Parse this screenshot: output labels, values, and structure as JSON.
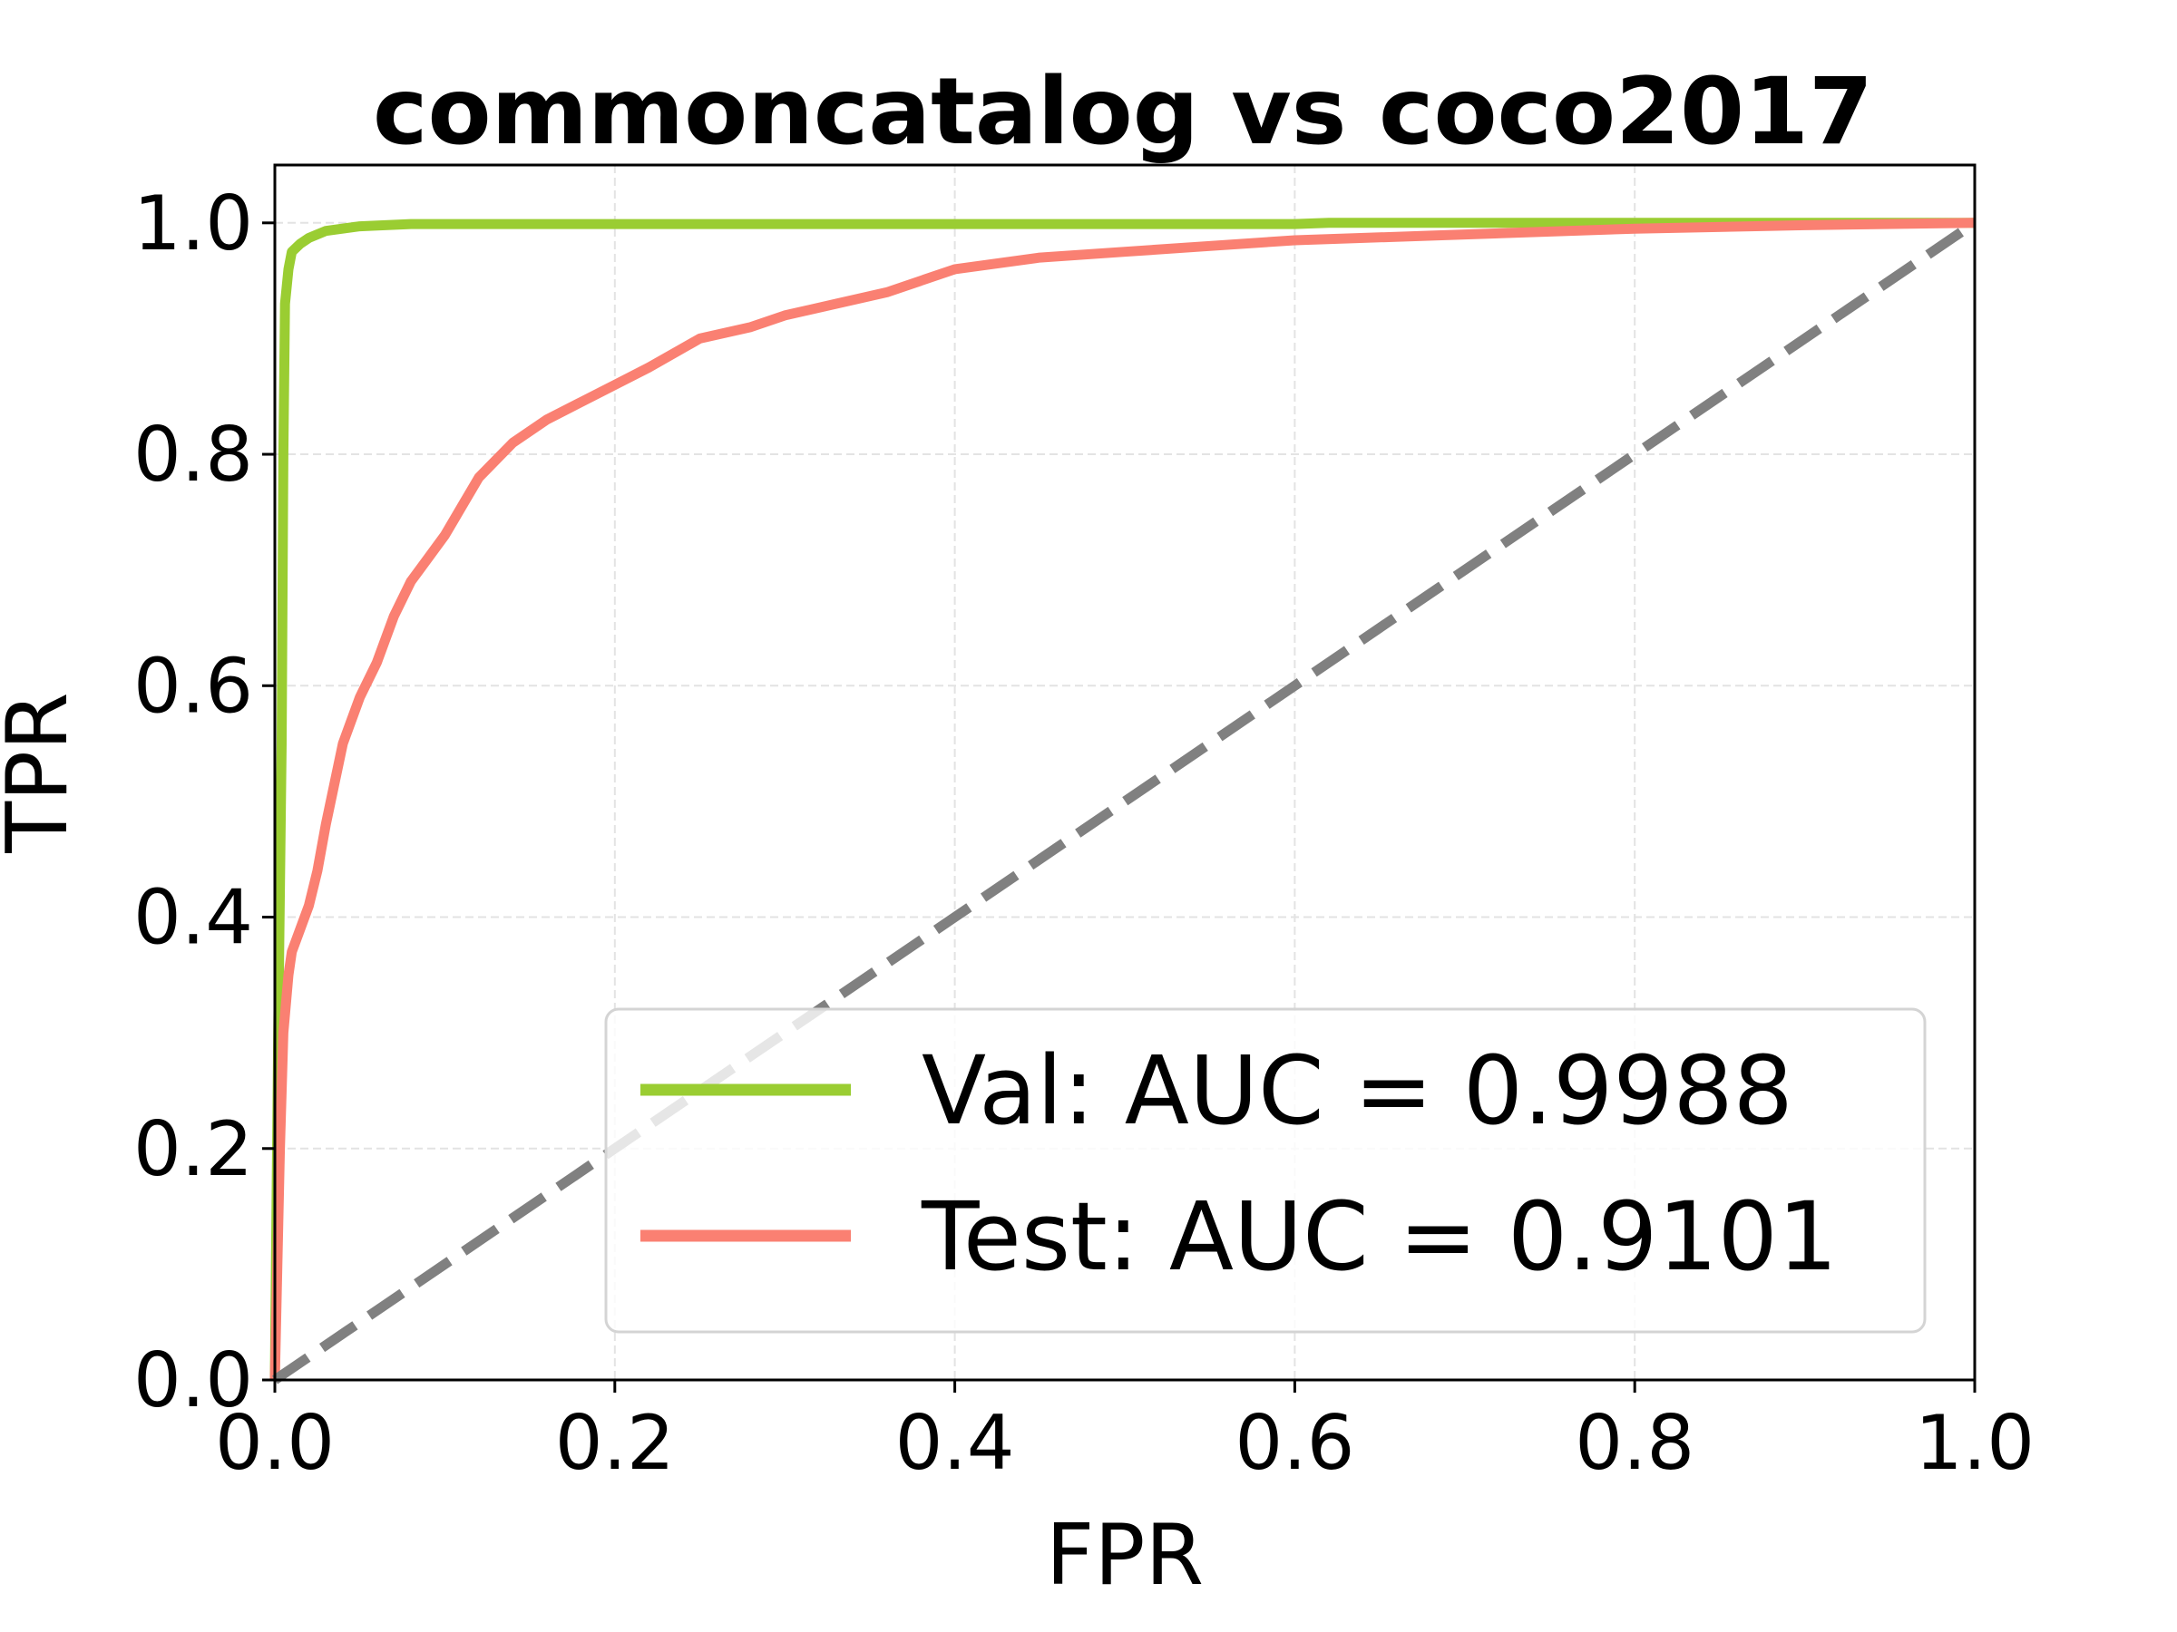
{
  "chart_data": {
    "type": "line",
    "title": "commoncatalog vs coco2017",
    "xlabel": "FPR",
    "ylabel": "TPR",
    "xlim": [
      0,
      1
    ],
    "ylim": [
      0,
      1.05
    ],
    "xticks": [
      "0.0",
      "0.2",
      "0.4",
      "0.6",
      "0.8",
      "1.0"
    ],
    "yticks": [
      "0.0",
      "0.2",
      "0.4",
      "0.6",
      "0.8",
      "1.0"
    ],
    "grid": true,
    "legend_position": "lower-right",
    "series": [
      {
        "name": "Val: AUC = 0.9988",
        "color": "#9acd32",
        "x": [
          0.0,
          0.002,
          0.004,
          0.005,
          0.006,
          0.008,
          0.01,
          0.015,
          0.02,
          0.03,
          0.05,
          0.08,
          0.15,
          0.3,
          0.5,
          0.6,
          0.62,
          0.8,
          1.0
        ],
        "y": [
          0.0,
          0.3,
          0.55,
          0.8,
          0.93,
          0.96,
          0.975,
          0.982,
          0.987,
          0.993,
          0.997,
          0.999,
          0.999,
          0.999,
          0.999,
          0.999,
          1.0,
          1.0,
          1.0
        ]
      },
      {
        "name": "Test: AUC = 0.9101",
        "color": "#fa8072",
        "x": [
          0.0,
          0.003,
          0.005,
          0.008,
          0.01,
          0.015,
          0.02,
          0.025,
          0.03,
          0.04,
          0.05,
          0.06,
          0.07,
          0.08,
          0.09,
          0.1,
          0.12,
          0.14,
          0.16,
          0.18,
          0.2,
          0.22,
          0.25,
          0.28,
          0.3,
          0.33,
          0.36,
          0.4,
          0.45,
          0.5,
          0.55,
          0.6,
          0.7,
          0.8,
          0.9,
          1.0
        ],
        "y": [
          0.0,
          0.2,
          0.3,
          0.35,
          0.37,
          0.39,
          0.41,
          0.44,
          0.48,
          0.55,
          0.59,
          0.62,
          0.66,
          0.69,
          0.71,
          0.73,
          0.78,
          0.81,
          0.83,
          0.845,
          0.86,
          0.875,
          0.9,
          0.91,
          0.92,
          0.93,
          0.94,
          0.96,
          0.97,
          0.975,
          0.98,
          0.985,
          0.99,
          0.995,
          0.998,
          1.0
        ]
      }
    ],
    "reference_line": {
      "color": "#808080",
      "x": [
        0,
        1
      ],
      "y": [
        0,
        1
      ]
    }
  }
}
